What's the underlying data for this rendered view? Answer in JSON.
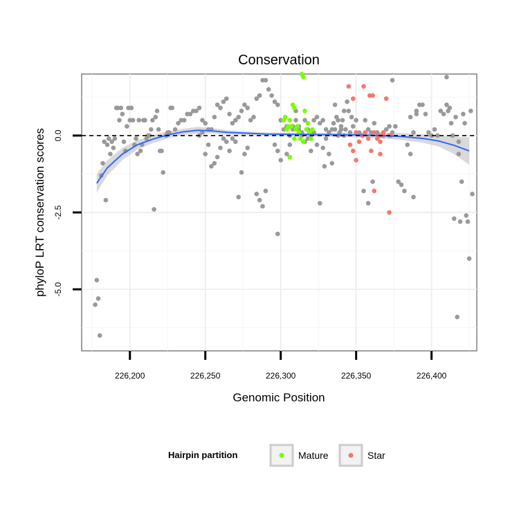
{
  "chart_data": {
    "type": "scatter",
    "title": "Conservation",
    "xlabel": "Genomic Position",
    "ylabel": "phyloP LRT conservation scores",
    "xlim": [
      226168,
      226430
    ],
    "ylim": [
      -7.0,
      2.0
    ],
    "x_ticks": [
      226200,
      226250,
      226300,
      226350,
      226400
    ],
    "x_tick_labels": [
      "226,200",
      "226,250",
      "226,300",
      "226,350",
      "226,400"
    ],
    "y_ticks": [
      -5.0,
      -2.5,
      0.0
    ],
    "y_tick_labels": [
      "-5.0",
      "-2.5",
      "0.0"
    ],
    "grid": true,
    "reference_line": {
      "y": 0.0,
      "style": "dashed",
      "color": "#000000"
    },
    "legend": {
      "title": "Hairpin partition",
      "placement": "bottom",
      "entries": [
        {
          "label": "Mature",
          "color": "#7CFC00"
        },
        {
          "label": "Star",
          "color": "#F8766D"
        }
      ]
    },
    "colors": {
      "other": "#999999",
      "mature": "#7CFC00",
      "star": "#F8766D",
      "smooth": "#3366FF",
      "ribbon": "#CCCCCC"
    },
    "smooth": {
      "x": [
        226178,
        226185,
        226195,
        226205,
        226215,
        226225,
        226235,
        226245,
        226255,
        226265,
        226275,
        226290,
        226310,
        226330,
        226350,
        226365,
        226380,
        226395,
        226405,
        226415,
        226425
      ],
      "y": [
        -1.55,
        -1.05,
        -0.6,
        -0.3,
        -0.12,
        0.02,
        0.12,
        0.17,
        0.15,
        0.1,
        0.08,
        0.05,
        0.04,
        0.03,
        0.02,
        0.0,
        -0.03,
        -0.1,
        -0.18,
        -0.32,
        -0.5
      ],
      "lower": [
        -1.85,
        -1.3,
        -0.8,
        -0.45,
        -0.25,
        -0.1,
        0.02,
        0.06,
        0.06,
        0.03,
        0.02,
        0.0,
        -0.01,
        -0.03,
        -0.06,
        -0.1,
        -0.14,
        -0.24,
        -0.36,
        -0.6,
        -0.95
      ],
      "upper": [
        -1.25,
        -0.8,
        -0.4,
        -0.15,
        0.01,
        0.14,
        0.22,
        0.28,
        0.24,
        0.17,
        0.14,
        0.1,
        0.09,
        0.09,
        0.1,
        0.1,
        0.08,
        0.04,
        0.0,
        -0.04,
        -0.05
      ]
    },
    "series": [
      {
        "name": "other",
        "points": [
          [
            226177,
            -5.5
          ],
          [
            226178,
            -4.7
          ],
          [
            226179,
            -5.3
          ],
          [
            226180,
            -6.5
          ],
          [
            226181,
            -1.3
          ],
          [
            226182,
            -0.9
          ],
          [
            226183,
            -0.2
          ],
          [
            226184,
            -2.1
          ],
          [
            226185,
            -0.3
          ],
          [
            226186,
            -0.1
          ],
          [
            226187,
            -0.6
          ],
          [
            226188,
            -0.2
          ],
          [
            226189,
            -0.4
          ],
          [
            226190,
            -0.1
          ],
          [
            226191,
            0.9
          ],
          [
            226192,
            0.9
          ],
          [
            226193,
            0.5
          ],
          [
            226194,
            0.9
          ],
          [
            226195,
            0.7
          ],
          [
            226196,
            -0.2
          ],
          [
            226197,
            -0.5
          ],
          [
            226198,
            0.3
          ],
          [
            226199,
            0.9
          ],
          [
            226200,
            0.5
          ],
          [
            226201,
            0.9
          ],
          [
            226202,
            0.5
          ],
          [
            226203,
            -0.3
          ],
          [
            226204,
            -0.1
          ],
          [
            226205,
            -0.6
          ],
          [
            226206,
            0.5
          ],
          [
            226207,
            -0.5
          ],
          [
            226208,
            -0.3
          ],
          [
            226209,
            0.5
          ],
          [
            226210,
            0.5
          ],
          [
            226211,
            -0.1
          ],
          [
            226212,
            0.0
          ],
          [
            226213,
            0.0
          ],
          [
            226214,
            0.2
          ],
          [
            226215,
            0.5
          ],
          [
            226216,
            -2.4
          ],
          [
            226217,
            0.6
          ],
          [
            226218,
            0.8
          ],
          [
            226219,
            0.2
          ],
          [
            226220,
            -0.5
          ],
          [
            226221,
            -0.5
          ],
          [
            226222,
            -1.2
          ],
          [
            226224,
            0.0
          ],
          [
            226225,
            0.1
          ],
          [
            226226,
            0.1
          ],
          [
            226227,
            0.9
          ],
          [
            226228,
            0.9
          ],
          [
            226230,
            0.2
          ],
          [
            226232,
            0.4
          ],
          [
            226234,
            0.5
          ],
          [
            226236,
            0.5
          ],
          [
            226238,
            0.7
          ],
          [
            226240,
            0.7
          ],
          [
            226242,
            0.8
          ],
          [
            226244,
            0.8
          ],
          [
            226246,
            0.9
          ],
          [
            226248,
            0.5
          ],
          [
            226250,
            0.4
          ],
          [
            226252,
            0.2
          ],
          [
            226254,
            0.2
          ],
          [
            226256,
            0.6
          ],
          [
            226258,
            1.0
          ],
          [
            226260,
            0.9
          ],
          [
            226262,
            1.1
          ],
          [
            226264,
            1.2
          ],
          [
            226266,
            0.7
          ],
          [
            226268,
            0.4
          ],
          [
            226270,
            0.5
          ],
          [
            226272,
            0.6
          ],
          [
            226274,
            0.8
          ],
          [
            226276,
            1.0
          ],
          [
            226278,
            0.9
          ],
          [
            226280,
            0.5
          ],
          [
            226282,
            0.6
          ],
          [
            226284,
            1.2
          ],
          [
            226286,
            1.3
          ],
          [
            226288,
            1.8
          ],
          [
            226290,
            1.8
          ],
          [
            226292,
            1.5
          ],
          [
            226294,
            1.3
          ],
          [
            226296,
            1.1
          ],
          [
            226298,
            1.0
          ],
          [
            226300,
            0.5
          ],
          [
            226302,
            0.2
          ],
          [
            226304,
            0.3
          ],
          [
            226306,
            0.0
          ],
          [
            226308,
            0.3
          ],
          [
            226310,
            0.5
          ],
          [
            226312,
            0.3
          ],
          [
            226314,
            0.1
          ],
          [
            226316,
            0.5
          ],
          [
            226318,
            0.2
          ],
          [
            226320,
            0.0
          ],
          [
            226322,
            0.5
          ],
          [
            226324,
            0.6
          ],
          [
            226326,
            0.4
          ],
          [
            226328,
            0.5
          ],
          [
            226330,
            0.2
          ],
          [
            226332,
            0.1
          ],
          [
            226334,
            0.2
          ],
          [
            226336,
            1.0
          ],
          [
            226338,
            0.5
          ],
          [
            226340,
            0.2
          ],
          [
            226342,
            0.8
          ],
          [
            226296,
            -0.3
          ],
          [
            226298,
            -0.5
          ],
          [
            226300,
            -0.8
          ],
          [
            226290,
            -1.8
          ],
          [
            226288,
            -2.3
          ],
          [
            226286,
            -2.1
          ],
          [
            226284,
            -1.9
          ],
          [
            226278,
            -0.4
          ],
          [
            226276,
            -0.6
          ],
          [
            226274,
            -1.2
          ],
          [
            226272,
            -2.0
          ],
          [
            226270,
            -0.2
          ],
          [
            226268,
            -0.1
          ],
          [
            226266,
            -0.5
          ],
          [
            226264,
            -0.2
          ],
          [
            226262,
            -0.1
          ],
          [
            226260,
            -0.4
          ],
          [
            226258,
            -0.7
          ],
          [
            226256,
            -0.9
          ],
          [
            226254,
            -1.0
          ],
          [
            226252,
            -0.3
          ],
          [
            226250,
            -0.6
          ],
          [
            226248,
            0.1
          ],
          [
            226246,
            0.0
          ],
          [
            226298,
            -3.2
          ],
          [
            226304,
            -0.6
          ],
          [
            226306,
            -0.3
          ],
          [
            226308,
            0.2
          ],
          [
            226310,
            0.8
          ],
          [
            226312,
            0.2
          ],
          [
            226314,
            0.0
          ],
          [
            226316,
            -0.2
          ],
          [
            226318,
            -0.1
          ],
          [
            226320,
            -0.5
          ],
          [
            226322,
            0.1
          ],
          [
            226324,
            -0.3
          ],
          [
            226326,
            -2.2
          ],
          [
            226328,
            -0.4
          ],
          [
            226330,
            -0.1
          ],
          [
            226332,
            -0.6
          ],
          [
            226334,
            -0.9
          ],
          [
            226336,
            0.2
          ],
          [
            226338,
            0.0
          ],
          [
            226340,
            0.3
          ],
          [
            226342,
            0.0
          ],
          [
            226344,
            1.1
          ],
          [
            226346,
            0.1
          ],
          [
            226348,
            0.3
          ],
          [
            226350,
            0.5
          ],
          [
            226352,
            0.1
          ],
          [
            226354,
            0.0
          ],
          [
            226356,
            0.5
          ],
          [
            226358,
            0.2
          ],
          [
            226360,
            0.1
          ],
          [
            226362,
            0.4
          ],
          [
            226364,
            0.1
          ],
          [
            226366,
            0.0
          ],
          [
            226368,
            0.1
          ],
          [
            226370,
            0.2
          ],
          [
            226372,
            0.0
          ],
          [
            226374,
            0.1
          ],
          [
            226376,
            0.3
          ],
          [
            226378,
            -1.5
          ],
          [
            226380,
            -1.6
          ],
          [
            226382,
            -1.8
          ],
          [
            226384,
            -0.3
          ],
          [
            226386,
            -0.6
          ],
          [
            226388,
            0.1
          ],
          [
            226390,
            0.7
          ],
          [
            226392,
            1.0
          ],
          [
            226394,
            1.0
          ],
          [
            226396,
            0.7
          ],
          [
            226398,
            0.1
          ],
          [
            226400,
            0.0
          ],
          [
            226402,
            0.2
          ],
          [
            226404,
            0.0
          ],
          [
            226406,
            0.8
          ],
          [
            226408,
            0.7
          ],
          [
            226410,
            1.0
          ],
          [
            226412,
            0.9
          ],
          [
            226414,
            0.0
          ],
          [
            226416,
            0.6
          ],
          [
            226418,
            -0.6
          ],
          [
            226420,
            -1.5
          ],
          [
            226422,
            0.4
          ],
          [
            226423,
            -2.6
          ],
          [
            226424,
            -2.8
          ],
          [
            226425,
            -4.0
          ],
          [
            226426,
            0.8
          ],
          [
            226427,
            -1.9
          ],
          [
            226372,
            0.3
          ],
          [
            226374,
            1.8
          ],
          [
            226386,
            0.6
          ],
          [
            226388,
            -2.0
          ],
          [
            226390,
            0.8
          ],
          [
            226410,
            1.9
          ],
          [
            226411,
            0.8
          ],
          [
            226413,
            0.4
          ],
          [
            226415,
            -2.7
          ],
          [
            226417,
            -5.9
          ],
          [
            226418,
            -0.2
          ],
          [
            226419,
            -2.8
          ],
          [
            226421,
            0.7
          ],
          [
            226329,
            -1.0
          ],
          [
            226361,
            -1.5
          ],
          [
            226358,
            -2.2
          ],
          [
            226355,
            -1.8
          ],
          [
            226335,
            0.4
          ],
          [
            226337,
            0.6
          ],
          [
            226339,
            0.1
          ],
          [
            226341,
            0.5
          ],
          [
            226343,
            0.2
          ],
          [
            226345,
            0.8
          ],
          [
            226347,
            0.6
          ]
        ]
      },
      {
        "name": "Mature",
        "points": [
          [
            226302,
            0.5
          ],
          [
            226303,
            0.6
          ],
          [
            226304,
            0.2
          ],
          [
            226305,
            0.3
          ],
          [
            226306,
            0.5
          ],
          [
            226307,
            0.3
          ],
          [
            226308,
            1.0
          ],
          [
            226309,
            0.9
          ],
          [
            226310,
            0.2
          ],
          [
            226311,
            0.3
          ],
          [
            226312,
            0.1
          ],
          [
            226313,
            -0.1
          ],
          [
            226314,
            2.0
          ],
          [
            226315,
            1.9
          ],
          [
            226316,
            0.8
          ],
          [
            226317,
            0.2
          ],
          [
            226318,
            0.4
          ],
          [
            226319,
            0.1
          ],
          [
            226320,
            -0.1
          ],
          [
            226321,
            0.2
          ],
          [
            226306,
            -0.7
          ],
          [
            226309,
            -0.1
          ],
          [
            226315,
            -0.2
          ]
        ]
      },
      {
        "name": "Star",
        "points": [
          [
            226345,
            1.6
          ],
          [
            226348,
            1.2
          ],
          [
            226350,
            0.1
          ],
          [
            226352,
            -0.2
          ],
          [
            226354,
            0.0
          ],
          [
            226355,
            1.6
          ],
          [
            226356,
            0.1
          ],
          [
            226358,
            -0.1
          ],
          [
            226359,
            1.3
          ],
          [
            226360,
            -0.5
          ],
          [
            226361,
            1.3
          ],
          [
            226362,
            0.1
          ],
          [
            226364,
            -0.1
          ],
          [
            226365,
            0.0
          ],
          [
            226366,
            -0.2
          ],
          [
            226368,
            0.1
          ],
          [
            226370,
            1.2
          ],
          [
            226372,
            -2.5
          ],
          [
            226373,
            0.0
          ],
          [
            226346,
            -0.3
          ],
          [
            226348,
            -0.5
          ],
          [
            226350,
            -0.8
          ],
          [
            226362,
            -1.8
          ],
          [
            226366,
            -0.6
          ],
          [
            226368,
            0.0
          ]
        ]
      }
    ]
  }
}
